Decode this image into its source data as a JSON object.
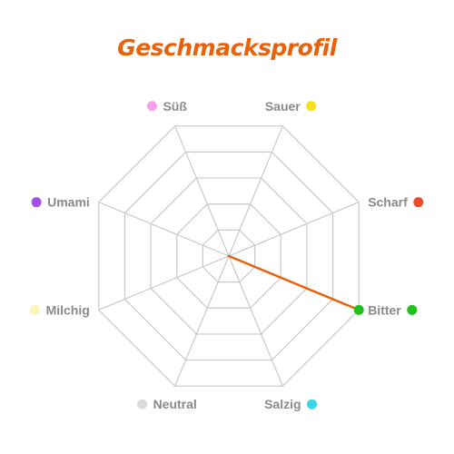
{
  "chart_data": {
    "type": "radar",
    "title": "Geschmacksprofil",
    "axes": [
      {
        "label": "Süß",
        "color": "#f7a2e6",
        "dot_side": "left"
      },
      {
        "label": "Sauer",
        "color": "#f6e11a",
        "dot_side": "right"
      },
      {
        "label": "Scharf",
        "color": "#ee4a2a",
        "dot_side": "right"
      },
      {
        "label": "Bitter",
        "color": "#22c01c",
        "dot_side": "right"
      },
      {
        "label": "Salzig",
        "color": "#38d6ea",
        "dot_side": "right"
      },
      {
        "label": "Neutral",
        "color": "#dadada",
        "dot_side": "left"
      },
      {
        "label": "Milchig",
        "color": "#faf5b8",
        "dot_side": "left"
      },
      {
        "label": "Umami",
        "color": "#a34ee6",
        "dot_side": "left"
      }
    ],
    "rings": 5,
    "range": [
      0,
      5
    ],
    "grid": true,
    "series": [
      {
        "values": [
          0,
          0,
          0,
          5,
          0,
          0,
          0,
          0
        ],
        "color": "#e8620c"
      }
    ]
  }
}
